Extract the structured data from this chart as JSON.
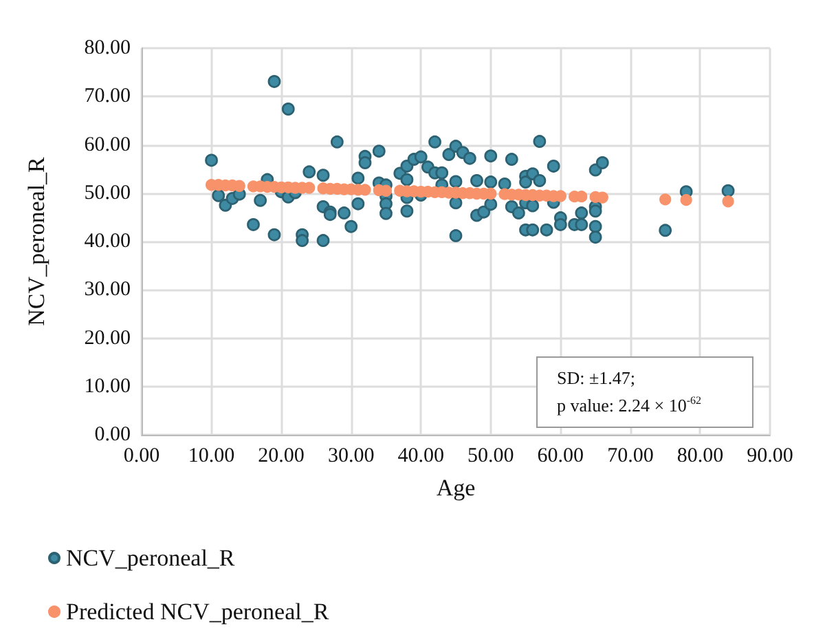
{
  "chart_data": {
    "type": "scatter",
    "xlabel": "Age",
    "ylabel": "NCV_peroneal_R",
    "xlim": [
      0,
      90
    ],
    "xticks": [
      {
        "value": 0,
        "label": "0.00"
      },
      {
        "value": 10,
        "label": "10.00"
      },
      {
        "value": 20,
        "label": "20.00"
      },
      {
        "value": 30,
        "label": "30.00"
      },
      {
        "value": 40,
        "label": "40.00"
      },
      {
        "value": 50,
        "label": "50.00"
      },
      {
        "value": 60,
        "label": "60.00"
      },
      {
        "value": 70,
        "label": "70.00"
      },
      {
        "value": 80,
        "label": "80.00"
      },
      {
        "value": 90,
        "label": "90.00"
      }
    ],
    "ylim": [
      0,
      80
    ],
    "yticks": [
      {
        "value": 0,
        "label": "0.00"
      },
      {
        "value": 10,
        "label": "10.00"
      },
      {
        "value": 20,
        "label": "20.00"
      },
      {
        "value": 30,
        "label": "30.00"
      },
      {
        "value": 40,
        "label": "40.00"
      },
      {
        "value": 50,
        "label": "50.00"
      },
      {
        "value": 60,
        "label": "60.00"
      },
      {
        "value": 70,
        "label": "70.00"
      },
      {
        "value": 80,
        "label": "80.00"
      }
    ],
    "grid": true,
    "legend": "bottom left",
    "marker": "circle",
    "annotations": [
      "SD: ±1.47;",
      "p value: 2.24 × 10$^{-62}$"
    ],
    "series": [
      {
        "name": "NCV_peroneal_R",
        "color": "#3f8aa3",
        "x": [
          10,
          11,
          12,
          13,
          14,
          16,
          17,
          18,
          19,
          19,
          20,
          21,
          21,
          22,
          23,
          23,
          24,
          26,
          26,
          26,
          27,
          27,
          28,
          29,
          30,
          31,
          31,
          32,
          32,
          34,
          34,
          35,
          35,
          35,
          35,
          37,
          38,
          38,
          38,
          38,
          39,
          40,
          40,
          41,
          42,
          42,
          43,
          43,
          44,
          45,
          45,
          45,
          45,
          46,
          47,
          48,
          48,
          49,
          50,
          50,
          50,
          52,
          53,
          53,
          54,
          55,
          55,
          55,
          55,
          56,
          56,
          56,
          57,
          57,
          58,
          59,
          59,
          60,
          60,
          62,
          63,
          63,
          65,
          66,
          65,
          65,
          65,
          65,
          75,
          78,
          84
        ],
        "values": [
          56.8,
          49.5,
          47.5,
          48.9,
          49.8,
          43.5,
          48.5,
          52.8,
          73.1,
          41.4,
          50.3,
          67.4,
          49.2,
          50.1,
          41.4,
          40.2,
          54.4,
          53.7,
          47.2,
          40.2,
          46.1,
          45.6,
          60.6,
          45.9,
          43.1,
          47.8,
          53.1,
          57.6,
          56.3,
          58.7,
          52.1,
          51.7,
          49.4,
          47.8,
          45.8,
          54.1,
          55.6,
          52.8,
          49.1,
          46.3,
          57.0,
          57.5,
          49.6,
          55.4,
          60.6,
          54.2,
          54.2,
          51.7,
          58.0,
          59.7,
          52.4,
          48.0,
          41.2,
          58.4,
          57.2,
          52.6,
          45.4,
          46.1,
          57.7,
          52.3,
          47.7,
          51.9,
          57.0,
          47.2,
          45.9,
          53.5,
          52.3,
          48.0,
          42.4,
          54.0,
          47.4,
          42.4,
          60.7,
          52.6,
          42.4,
          55.6,
          48.1,
          44.9,
          43.5,
          43.5,
          45.9,
          43.5,
          54.8,
          56.3,
          47.2,
          46.3,
          43.1,
          40.9,
          42.3,
          50.3,
          50.5
        ]
      },
      {
        "name": "Predicted NCV_peroneal_R",
        "color": "#f7926a",
        "x": [
          10,
          11,
          12,
          13,
          14,
          16,
          17,
          18,
          19,
          20,
          21,
          22,
          23,
          24,
          26,
          27,
          28,
          29,
          30,
          31,
          32,
          34,
          35,
          37,
          38,
          39,
          40,
          41,
          42,
          43,
          44,
          45,
          46,
          47,
          48,
          49,
          50,
          52,
          53,
          54,
          55,
          56,
          57,
          58,
          59,
          60,
          62,
          63,
          65,
          66,
          75,
          78,
          84
        ],
        "values": [
          51.7,
          51.7,
          51.6,
          51.6,
          51.5,
          51.4,
          51.4,
          51.3,
          51.3,
          51.2,
          51.2,
          51.1,
          51.1,
          51.1,
          51.0,
          50.9,
          50.9,
          50.8,
          50.8,
          50.7,
          50.7,
          50.6,
          50.5,
          50.5,
          50.4,
          50.4,
          50.3,
          50.3,
          50.2,
          50.2,
          50.1,
          50.1,
          50.0,
          50.0,
          49.9,
          49.9,
          49.9,
          49.8,
          49.7,
          49.7,
          49.6,
          49.6,
          49.5,
          49.5,
          49.4,
          49.4,
          49.3,
          49.3,
          49.2,
          49.1,
          48.7,
          48.6,
          48.3
        ]
      }
    ]
  }
}
